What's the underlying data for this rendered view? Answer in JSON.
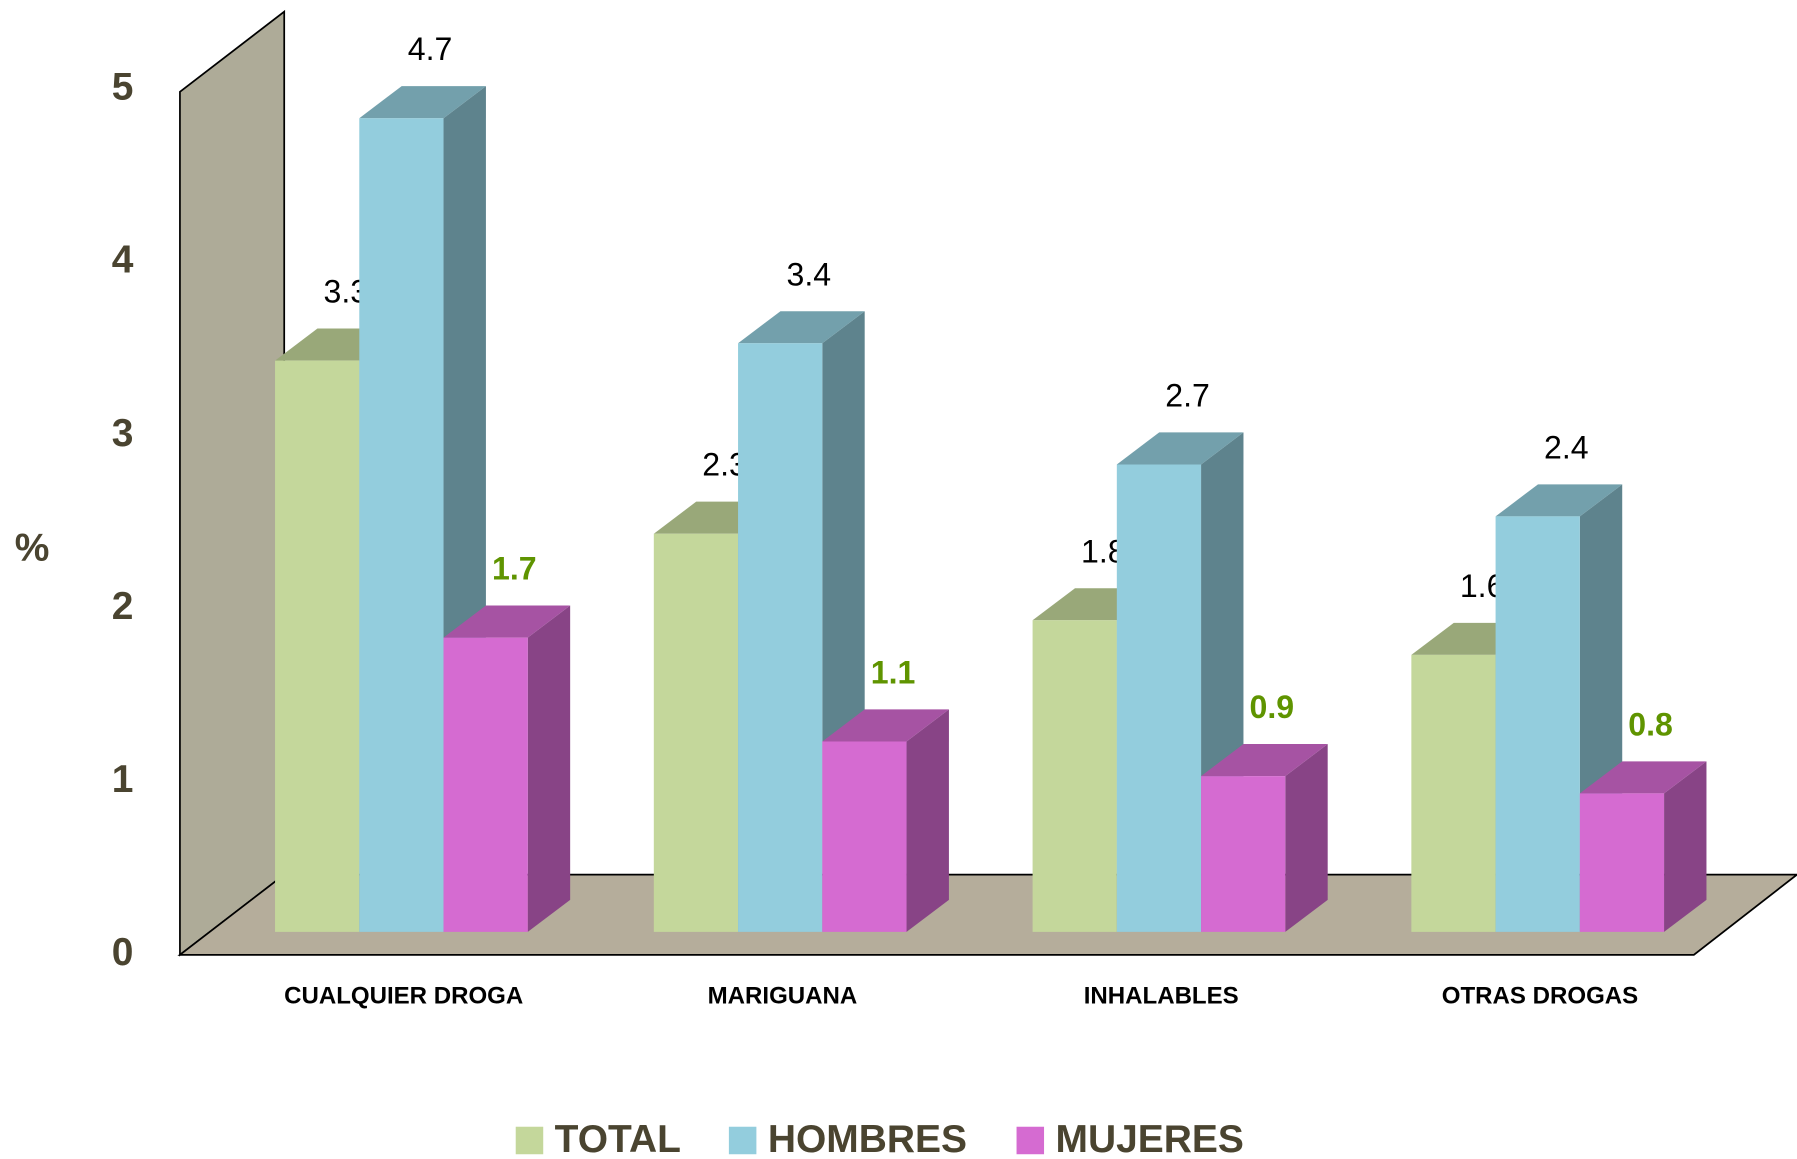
{
  "chart_data": {
    "type": "bar3d",
    "ylabel": "%",
    "categories": [
      "CUALQUIER DROGA",
      "MARIGUANA",
      "INHALABLES",
      "OTRAS DROGAS"
    ],
    "series": [
      {
        "name": "TOTAL",
        "color": "#c4d79b",
        "label_color": "#000000",
        "values": [
          3.3,
          2.3,
          1.8,
          1.6
        ]
      },
      {
        "name": "HOMBRES",
        "color": "#93cddd",
        "label_color": "#000000",
        "values": [
          4.7,
          3.4,
          2.7,
          2.4
        ]
      },
      {
        "name": "MUJERES",
        "color": "#d56bd1",
        "label_color": "#5f9400",
        "values": [
          1.7,
          1.1,
          0.9,
          0.8
        ]
      }
    ],
    "ylim": [
      0,
      5
    ],
    "yticks": [
      0,
      1,
      2,
      3,
      4,
      5
    ]
  }
}
